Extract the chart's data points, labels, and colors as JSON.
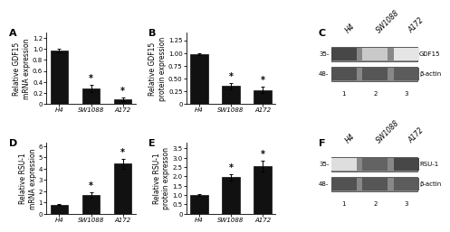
{
  "panel_A": {
    "label": "A",
    "categories": [
      "H4",
      "SW1088",
      "A172"
    ],
    "values": [
      0.97,
      0.28,
      0.08
    ],
    "errors": [
      0.03,
      0.07,
      0.03
    ],
    "ylabel": "Relative GDF15\nmRNA expression",
    "yticks": [
      0.0,
      0.2,
      0.4,
      0.6,
      0.8,
      1.0,
      1.2
    ],
    "yticklabels": [
      "0",
      "0.2",
      "0.4",
      "0.6",
      "0.8",
      "1.0",
      "1.2"
    ],
    "ylim": [
      0,
      1.3
    ],
    "star": [
      false,
      true,
      true
    ]
  },
  "panel_B": {
    "label": "B",
    "categories": [
      "H4",
      "SW1088",
      "A172"
    ],
    "values": [
      0.98,
      0.35,
      0.27
    ],
    "errors": [
      0.02,
      0.06,
      0.06
    ],
    "ylabel": "Relative GDF15\nprotein expression",
    "yticks": [
      0.0,
      0.25,
      0.5,
      0.75,
      1.0,
      1.25
    ],
    "yticklabels": [
      "0",
      "0.25",
      "0.50",
      "0.75",
      "1.00",
      "1.25"
    ],
    "ylim": [
      0,
      1.4
    ],
    "star": [
      false,
      true,
      true
    ]
  },
  "panel_D": {
    "label": "D",
    "categories": [
      "H4",
      "SW1088",
      "A172"
    ],
    "values": [
      0.8,
      1.65,
      4.45
    ],
    "errors": [
      0.05,
      0.22,
      0.42
    ],
    "ylabel": "Relative RSU-1\nmRNA expression",
    "yticks": [
      0,
      1,
      2,
      3,
      4,
      5,
      6
    ],
    "yticklabels": [
      "0",
      "1",
      "2",
      "3",
      "4",
      "5",
      "6"
    ],
    "ylim": [
      0,
      6.3
    ],
    "star": [
      false,
      true,
      true
    ]
  },
  "panel_E": {
    "label": "E",
    "categories": [
      "H4",
      "SW1088",
      "A172"
    ],
    "values": [
      1.0,
      1.95,
      2.55
    ],
    "errors": [
      0.05,
      0.15,
      0.28
    ],
    "ylabel": "Relative RSU-1\nprotein expresson",
    "yticks": [
      0.0,
      0.5,
      1.0,
      1.5,
      2.0,
      2.5,
      3.0,
      3.5
    ],
    "yticklabels": [
      "0",
      "0.5",
      "1.0",
      "1.5",
      "2.0",
      "2.5",
      "3.0",
      "3.5"
    ],
    "ylim": [
      0,
      3.8
    ],
    "star": [
      false,
      true,
      true
    ]
  },
  "panel_C": {
    "label": "C",
    "col_labels": [
      "H4",
      "SW1088",
      "A172"
    ],
    "band_labels": [
      "GDF15",
      "β-actin"
    ],
    "marker_labels": [
      "35-",
      "48-"
    ],
    "col_numbers": [
      "1",
      "2",
      "3"
    ],
    "gdf15_intensities": [
      0.85,
      0.25,
      0.12
    ],
    "bactin_C_intensities": [
      0.8,
      0.78,
      0.75
    ]
  },
  "panel_F": {
    "label": "F",
    "col_labels": [
      "H4",
      "SW1088",
      "A172"
    ],
    "band_labels": [
      "RSU-1",
      "β-actin"
    ],
    "marker_labels": [
      "35-",
      "48-"
    ],
    "col_numbers": [
      "1",
      "2",
      "3"
    ],
    "rsu1_intensities": [
      0.15,
      0.72,
      0.85
    ],
    "bactin_F_intensities": [
      0.8,
      0.78,
      0.75
    ]
  },
  "bar_color": "#111111",
  "bar_width": 0.55,
  "font_size": 5.5,
  "tick_font_size": 5.0,
  "panel_label_size": 8
}
